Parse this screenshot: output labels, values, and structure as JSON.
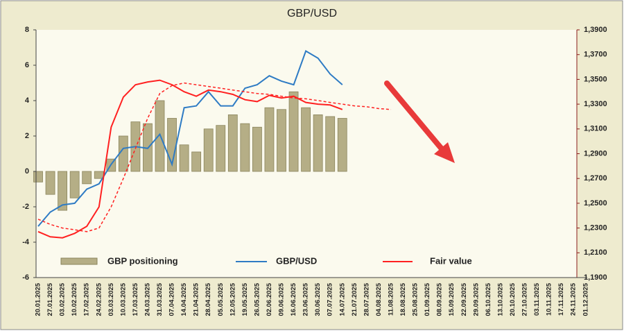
{
  "chart_data": {
    "type": "bar",
    "title": "GBP/USD",
    "categories": [
      "20.01.2025",
      "27.01.2025",
      "03.02.2025",
      "10.02.2025",
      "17.02.2025",
      "24.02.2025",
      "03.03.2025",
      "10.03.2025",
      "17.03.2025",
      "24.03.2025",
      "31.03.2025",
      "07.04.2025",
      "14.04.2025",
      "21.04.2025",
      "28.04.2025",
      "05.05.2025",
      "12.05.2025",
      "19.05.2025",
      "26.05.2025",
      "02.06.2025",
      "09.06.2025",
      "16.06.2025",
      "23.06.2025",
      "30.06.2025",
      "07.07.2025",
      "14.07.2025",
      "21.07.2025",
      "28.07.2025",
      "04.08.2025",
      "11.08.2025",
      "18.08.2025",
      "25.08.2025",
      "01.09.2025",
      "08.09.2025",
      "15.09.2025",
      "22.09.2025",
      "29.09.2025",
      "06.10.2025",
      "13.10.2025",
      "20.10.2025",
      "27.10.2025",
      "03.11.2025",
      "10.11.2025",
      "17.11.2025",
      "24.11.2025",
      "01.12.2025"
    ],
    "ylim": [
      -6,
      8
    ],
    "yticks": [
      -6,
      -4,
      -2,
      0,
      2,
      4,
      6,
      8
    ],
    "y2lim": [
      1.19,
      1.39
    ],
    "y2ticks": [
      {
        "value": 1.19,
        "label": "1,1900"
      },
      {
        "value": 1.21,
        "label": "1,2100"
      },
      {
        "value": 1.23,
        "label": "1,2300"
      },
      {
        "value": 1.25,
        "label": "1,2500"
      },
      {
        "value": 1.27,
        "label": "1,2700"
      },
      {
        "value": 1.29,
        "label": "1,2900"
      },
      {
        "value": 1.31,
        "label": "1,3100"
      },
      {
        "value": 1.33,
        "label": "1,3300"
      },
      {
        "value": 1.35,
        "label": "1,3500"
      },
      {
        "value": 1.37,
        "label": "1,3700"
      },
      {
        "value": 1.39,
        "label": "1,3900"
      }
    ],
    "series": [
      {
        "name": "GBP positioning",
        "type": "bar",
        "color": "#b5ae86",
        "values": [
          -0.6,
          -1.3,
          -2.2,
          -1.5,
          -0.7,
          -0.4,
          0.7,
          2.0,
          2.8,
          2.7,
          4.0,
          3.0,
          1.5,
          1.1,
          2.4,
          2.6,
          3.2,
          2.7,
          2.5,
          3.6,
          3.5,
          4.5,
          3.6,
          3.2,
          3.1,
          3.0,
          null,
          null,
          null,
          null,
          null,
          null,
          null,
          null,
          null,
          null,
          null,
          null,
          null,
          null,
          null,
          null,
          null,
          null,
          null,
          null
        ]
      },
      {
        "name": "GBP/USD",
        "type": "line",
        "axis": "y2",
        "color": "#2e7bc4",
        "values": [
          1.2314,
          1.2429,
          1.2486,
          1.25,
          1.2614,
          1.2657,
          1.2814,
          1.2943,
          1.2957,
          1.2943,
          1.3057,
          1.2814,
          1.3271,
          1.3286,
          1.34,
          1.3286,
          1.3286,
          1.3429,
          1.3457,
          1.3529,
          1.3486,
          1.3457,
          1.3729,
          1.3671,
          1.3543,
          1.3457,
          null,
          null,
          null,
          null,
          null,
          null,
          null,
          null,
          null,
          null,
          null,
          null,
          null,
          null,
          null,
          null,
          null,
          null,
          null,
          null
        ]
      },
      {
        "name": "Fair value",
        "type": "line",
        "axis": "y2",
        "color": "#ff2020",
        "values": [
          1.2271,
          1.2229,
          1.2221,
          1.2257,
          1.2314,
          1.2471,
          1.3114,
          1.3357,
          1.3457,
          1.3479,
          1.3493,
          1.3457,
          1.34,
          1.3364,
          1.3414,
          1.34,
          1.3379,
          1.3336,
          1.3321,
          1.3371,
          1.335,
          1.3364,
          1.3314,
          1.33,
          1.3293,
          1.3257,
          null,
          null,
          null,
          null,
          null,
          null,
          null,
          null,
          null,
          null,
          null,
          null,
          null,
          null,
          null,
          null,
          null,
          null,
          null,
          null
        ]
      },
      {
        "type": "line",
        "axis": "y2",
        "color": "#ff2020",
        "dashed": true,
        "values": [
          1.2371,
          1.2329,
          1.23,
          1.2286,
          1.2271,
          1.23,
          1.2471,
          1.27,
          1.2943,
          1.3186,
          1.3386,
          1.345,
          1.3471,
          1.3457,
          1.3443,
          1.3429,
          1.3414,
          1.34,
          1.3386,
          1.3379,
          1.3364,
          1.335,
          1.3343,
          1.3329,
          1.3314,
          1.33,
          1.3286,
          1.3279,
          1.3264,
          1.3257,
          null,
          null,
          null,
          null,
          null,
          null,
          null,
          null,
          null,
          null,
          null,
          null,
          null,
          null,
          null,
          null
        ]
      }
    ]
  }
}
